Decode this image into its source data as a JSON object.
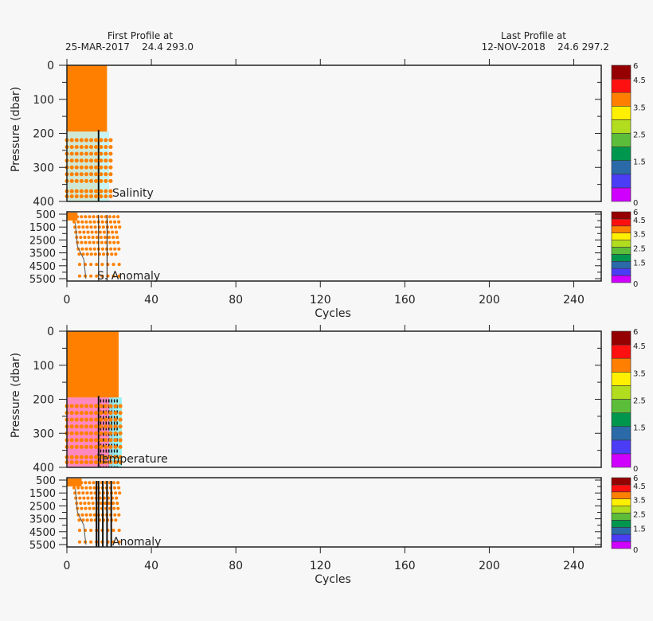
{
  "header": {
    "first_label": "First Profile at",
    "first_value": "25-MAR-2017    24.4 293.0",
    "last_label": "Last Profile at",
    "last_value": "12-NOV-2018    24.6 297.2"
  },
  "colors": {
    "background": "#f7f7f7",
    "fill": "#ff8000",
    "salinity_shade": "#cfe8d6",
    "temperature_shade": "#ff88c0",
    "cyan": "#80f0f0"
  },
  "chart_data": [
    {
      "type": "heatmap",
      "label": "Salinity",
      "xlabel": "Cycles",
      "ylabel": "Pressure (dbar)",
      "xlim": [
        0,
        253
      ],
      "xticks": [
        0,
        40,
        80,
        120,
        160,
        200,
        240
      ],
      "upper": {
        "ylim": [
          0,
          400
        ],
        "yticks": [
          0,
          100,
          200,
          300,
          400
        ]
      },
      "lower": {
        "label": "S. Anomaly",
        "ylim": [
          500,
          5500
        ],
        "yticks": [
          500,
          1500,
          2500,
          3500,
          4500,
          5500
        ]
      },
      "data_cycle_range": [
        0,
        21
      ],
      "colorbar": {
        "ticks": [
          "0",
          "1.5",
          "2.5",
          "3.5",
          "4.5",
          "6"
        ],
        "colors": [
          "#d000ff",
          "#4b3cf5",
          "#2a6aa8",
          "#00964e",
          "#5cbd3a",
          "#b2dc1e",
          "#ffef00",
          "#ff8000",
          "#ff1010",
          "#950000"
        ]
      }
    },
    {
      "type": "heatmap",
      "label": "Temperature",
      "xlabel": "Cycles",
      "ylabel": "Pressure (dbar)",
      "xlim": [
        0,
        253
      ],
      "xticks": [
        0,
        40,
        80,
        120,
        160,
        200,
        240
      ],
      "upper": {
        "ylim": [
          0,
          400
        ],
        "yticks": [
          0,
          100,
          200,
          300,
          400
        ]
      },
      "lower": {
        "label": "Anomaly",
        "ylim": [
          500,
          5500
        ],
        "yticks": [
          500,
          1500,
          2500,
          3500,
          4500,
          5500
        ]
      },
      "data_cycle_range": [
        0,
        26
      ],
      "colorbar": {
        "ticks": [
          "0",
          "1.5",
          "2.5",
          "3.5",
          "4.5",
          "6"
        ],
        "colors": [
          "#d000ff",
          "#4b3cf5",
          "#2a6aa8",
          "#00964e",
          "#5cbd3a",
          "#b2dc1e",
          "#ffef00",
          "#ff8000",
          "#ff1010",
          "#950000"
        ]
      }
    }
  ]
}
